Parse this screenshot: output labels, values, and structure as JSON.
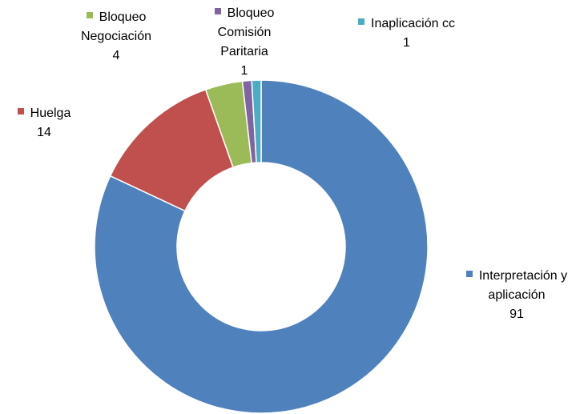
{
  "chart_data": {
    "type": "donut",
    "categories": [
      "Interpretación y aplicación",
      "Huelga",
      "Bloqueo Negociación",
      "Bloqueo Comisión Paritaria",
      "Inaplicación cc"
    ],
    "values": [
      91,
      14,
      4,
      1,
      1
    ],
    "colors": [
      "#4f81bd",
      "#c0504d",
      "#9bbb59",
      "#8064a2",
      "#4bacc6"
    ]
  }
}
